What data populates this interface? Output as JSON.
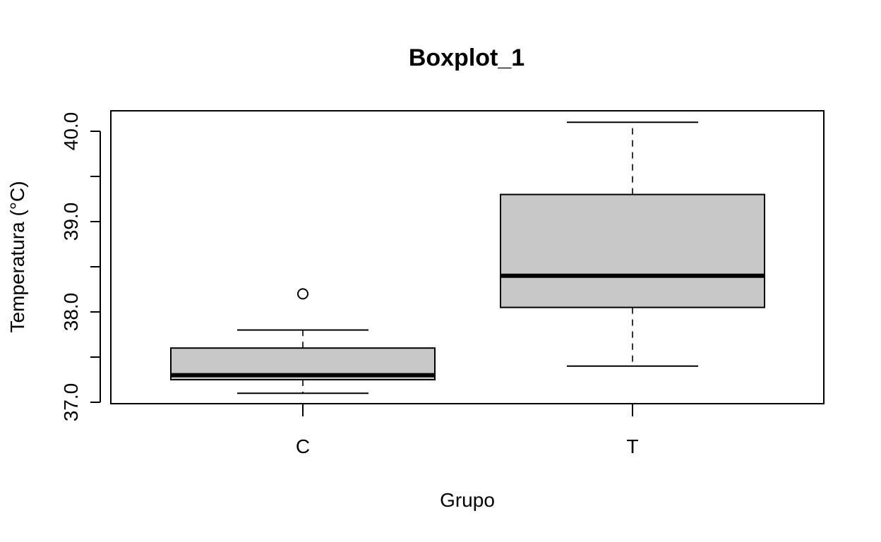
{
  "chart_data": {
    "type": "boxplot",
    "title": "Boxplot_1",
    "xlabel": "Grupo",
    "ylabel": "Temperatura (°C)",
    "ylim": [
      37.0,
      40.1
    ],
    "yticks": [
      37.0,
      37.5,
      38.0,
      38.5,
      39.0,
      39.5,
      40.0
    ],
    "ytick_labels": [
      "37.0",
      "",
      "38.0",
      "",
      "39.0",
      "",
      "40.0"
    ],
    "categories": [
      "C",
      "T"
    ],
    "boxes": [
      {
        "name": "C",
        "whisker_low": 37.1,
        "q1": 37.25,
        "median": 37.3,
        "q3": 37.6,
        "whisker_high": 37.8,
        "outliers": [
          38.2
        ]
      },
      {
        "name": "T",
        "whisker_low": 37.4,
        "q1": 38.05,
        "median": 38.4,
        "q3": 39.3,
        "whisker_high": 40.1,
        "outliers": []
      }
    ],
    "box_fill": "#c8c8c8",
    "grid": false,
    "legend": "none"
  }
}
